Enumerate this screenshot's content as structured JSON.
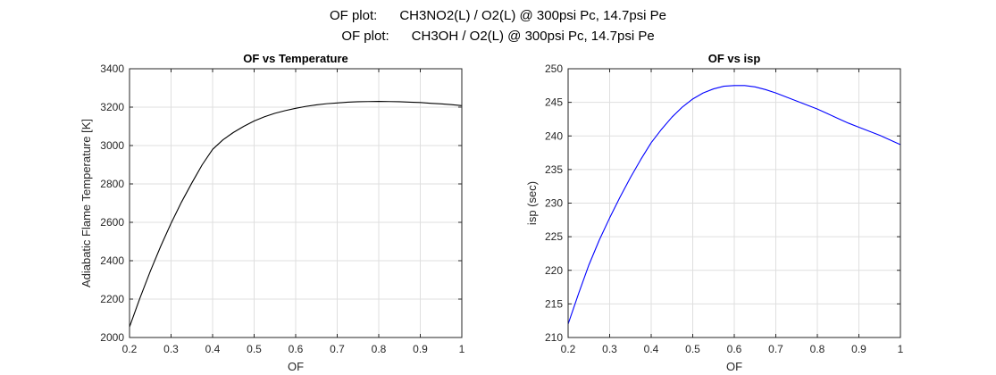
{
  "figure": {
    "suptitle_lines": [
      "OF plot:      CH3NO2(L) / O2(L) @ 300psi Pc, 14.7psi Pe",
      "OF plot:      CH3OH / O2(L) @ 300psi Pc, 14.7psi Pe"
    ]
  },
  "chart_data": [
    {
      "type": "line",
      "title": "OF vs Temperature",
      "xlabel": "OF",
      "ylabel": "Adiabatic Flame Temperature [K]",
      "xlim": [
        0.2,
        1
      ],
      "ylim": [
        2000,
        3400
      ],
      "xticks": [
        0.2,
        0.3,
        0.4,
        0.5,
        0.6,
        0.7,
        0.8,
        0.9,
        1
      ],
      "yticks": [
        2000,
        2200,
        2400,
        2600,
        2800,
        3000,
        3200,
        3400
      ],
      "grid": true,
      "series": [
        {
          "color": "#000000",
          "x": [
            0.2,
            0.225,
            0.25,
            0.275,
            0.3,
            0.325,
            0.35,
            0.375,
            0.4,
            0.425,
            0.45,
            0.475,
            0.5,
            0.525,
            0.55,
            0.575,
            0.6,
            0.625,
            0.65,
            0.675,
            0.7,
            0.725,
            0.75,
            0.775,
            0.8,
            0.825,
            0.85,
            0.875,
            0.9,
            0.925,
            0.95,
            0.975,
            1.0
          ],
          "y": [
            2055,
            2205,
            2345,
            2475,
            2595,
            2705,
            2805,
            2900,
            2980,
            3030,
            3068,
            3100,
            3128,
            3150,
            3168,
            3182,
            3194,
            3204,
            3212,
            3218,
            3222,
            3226,
            3228,
            3229,
            3230,
            3229,
            3228,
            3226,
            3224,
            3220,
            3217,
            3213,
            3208
          ]
        }
      ]
    },
    {
      "type": "line",
      "title": "OF vs isp",
      "xlabel": "OF",
      "ylabel": "isp (sec)",
      "xlim": [
        0.2,
        1
      ],
      "ylim": [
        210,
        250
      ],
      "xticks": [
        0.2,
        0.3,
        0.4,
        0.5,
        0.6,
        0.7,
        0.8,
        0.9,
        1
      ],
      "yticks": [
        210,
        215,
        220,
        225,
        230,
        235,
        240,
        245,
        250
      ],
      "grid": true,
      "series": [
        {
          "color": "#0000ff",
          "x": [
            0.2,
            0.225,
            0.25,
            0.275,
            0.3,
            0.325,
            0.35,
            0.375,
            0.4,
            0.425,
            0.45,
            0.475,
            0.5,
            0.525,
            0.55,
            0.575,
            0.6,
            0.625,
            0.65,
            0.675,
            0.7,
            0.725,
            0.75,
            0.775,
            0.8,
            0.825,
            0.85,
            0.875,
            0.9,
            0.925,
            0.95,
            0.975,
            1.0
          ],
          "y": [
            212.0,
            216.5,
            220.8,
            224.5,
            227.8,
            230.9,
            233.8,
            236.5,
            239.0,
            241.0,
            242.8,
            244.3,
            245.5,
            246.4,
            247.0,
            247.4,
            247.5,
            247.5,
            247.3,
            246.9,
            246.4,
            245.8,
            245.2,
            244.6,
            244.0,
            243.3,
            242.6,
            241.9,
            241.3,
            240.7,
            240.1,
            239.4,
            238.7
          ]
        }
      ]
    }
  ]
}
